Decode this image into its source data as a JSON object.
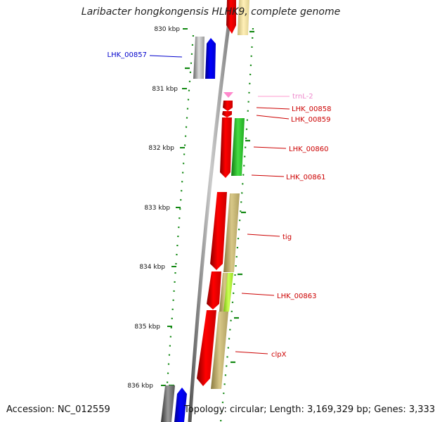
{
  "title": "Laribacter hongkongensis HLHK9, complete genome",
  "footer": {
    "accession": "Accession: NC_012559",
    "summary": "Topology: circular; Length: 3,169,329 bp; Genes: 3,333"
  },
  "ticks": [
    "830 kbp",
    "831 kbp",
    "832 kbp",
    "833 kbp",
    "834 kbp",
    "835 kbp",
    "836 kbp"
  ],
  "genes": [
    {
      "id": "LHK_00857",
      "label": "LHK_00857",
      "color": "#0000cc"
    },
    {
      "id": "trnL-2",
      "label": "trnL-2",
      "color": "#ee88cc"
    },
    {
      "id": "LHK_00858",
      "label": "LHK_00858",
      "color": "#cc0000"
    },
    {
      "id": "LHK_00859",
      "label": "LHK_00859",
      "color": "#cc0000"
    },
    {
      "id": "LHK_00860",
      "label": "LHK_00860",
      "color": "#cc0000"
    },
    {
      "id": "LHK_00861",
      "label": "LHK_00861",
      "color": "#cc0000"
    },
    {
      "id": "tig",
      "label": "tig",
      "color": "#cc0000"
    },
    {
      "id": "LHK_00863",
      "label": "LHK_00863",
      "color": "#cc0000"
    },
    {
      "id": "clpX",
      "label": "clpX",
      "color": "#cc0000"
    }
  ],
  "colors": {
    "backbone": "#808080",
    "cds_red": "#ff0000",
    "cds_blue": "#0000ff",
    "cds_grey": "#aaaaaa",
    "trna_pink": "#ff88cc",
    "tan": "#c8b878",
    "light_yellow": "#f0e0a0",
    "green": "#33cc33",
    "lime": "#aaff33",
    "gc_green": "#118811"
  }
}
